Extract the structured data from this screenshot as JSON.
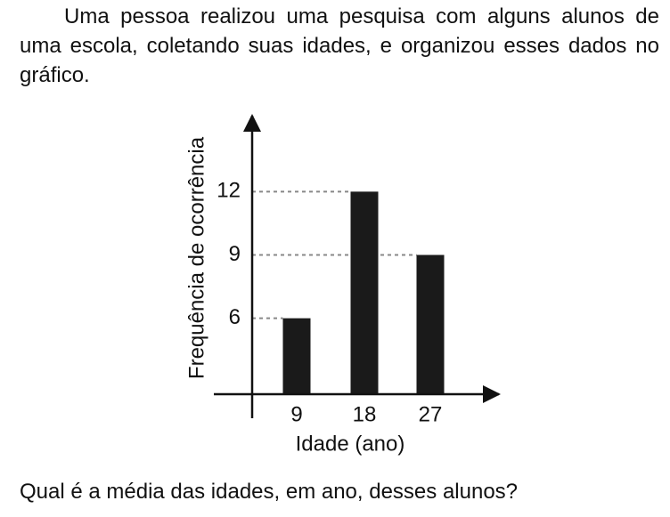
{
  "intro": "Uma pessoa realizou uma pesquisa com alguns alunos de uma escola, coletando suas idades, e organizou esses dados no gráfico.",
  "chart_data": {
    "type": "bar",
    "x_label": "Idade (ano)",
    "y_label": "Frequência de ocorrência",
    "categories": [
      "9",
      "18",
      "27"
    ],
    "values": [
      6,
      12,
      9
    ],
    "color": "#1a1a1a",
    "ylim": [
      2.4,
      15.6
    ],
    "yticks": [
      6,
      9,
      12
    ],
    "grid": true
  },
  "question": "Qual é a média das idades, em ano, desses alunos?"
}
